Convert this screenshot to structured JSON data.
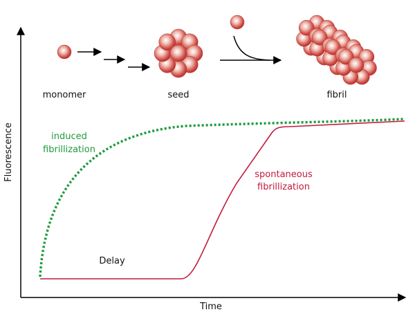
{
  "axes": {
    "y_label": "Fluorescence",
    "x_label": "Time"
  },
  "stages": [
    {
      "label": "monomer"
    },
    {
      "label": "seed"
    },
    {
      "label": "fibril"
    }
  ],
  "curves": [
    {
      "label_lines": [
        "induced",
        "fibrillization"
      ]
    },
    {
      "label_lines": [
        "spontaneous",
        "fibrillization"
      ]
    }
  ],
  "annotations": {
    "delay": "Delay"
  }
}
